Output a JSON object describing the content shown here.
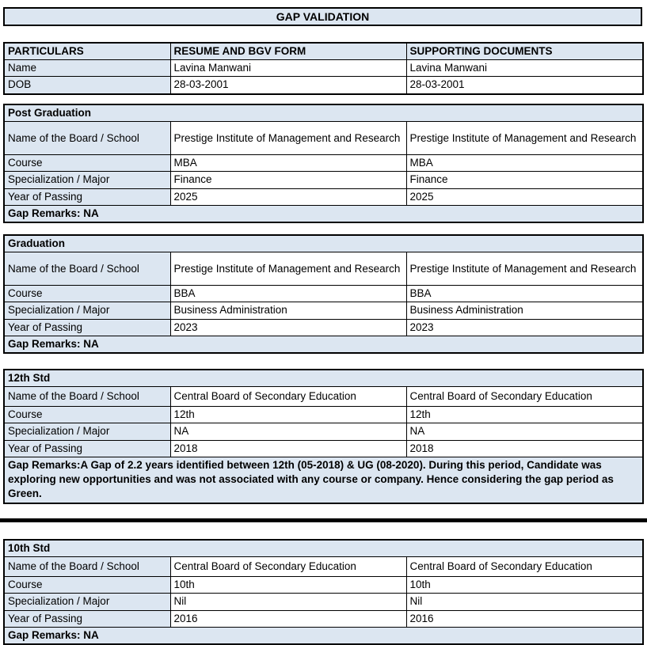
{
  "page": {
    "title": "GAP VALIDATION"
  },
  "colors": {
    "fill": "#dce6f1",
    "border": "#000000"
  },
  "particulars": {
    "headers": {
      "col1": "PARTICULARS",
      "col2": "RESUME AND BGV FORM",
      "col3": "SUPPORTING DOCUMENTS"
    },
    "rows": [
      {
        "label": "Name",
        "resume": "Lavina Manwani",
        "supporting": "Lavina Manwani"
      },
      {
        "label": "DOB",
        "resume": "28-03-2001",
        "supporting": "28-03-2001"
      }
    ]
  },
  "sections": [
    {
      "title": "Post Graduation",
      "rows": [
        {
          "label": "Name of the Board / School",
          "resume": "Prestige Institute of Management and Research",
          "supporting": "Prestige Institute of Management and Research"
        },
        {
          "label": "Course",
          "resume": "MBA",
          "supporting": "MBA"
        },
        {
          "label": "Specialization / Major",
          "resume": "Finance",
          "supporting": "Finance"
        },
        {
          "label": "Year of Passing",
          "resume": "2025",
          "supporting": "2025"
        }
      ],
      "gap_remarks": "Gap Remarks: NA"
    },
    {
      "title": "Graduation",
      "rows": [
        {
          "label": "Name of the Board / School",
          "resume": "Prestige Institute of Management and Research",
          "supporting": "Prestige Institute of Management and Research"
        },
        {
          "label": "Course",
          "resume": "BBA",
          "supporting": "BBA"
        },
        {
          "label": "Specialization / Major",
          "resume": "Business Administration",
          "supporting": "Business Administration"
        },
        {
          "label": "Year of Passing",
          "resume": "2023",
          "supporting": "2023"
        }
      ],
      "gap_remarks": "Gap Remarks: NA"
    },
    {
      "title": "12th Std",
      "rows": [
        {
          "label": "Name of the Board / School",
          "resume": "Central Board of Secondary Education",
          "supporting": "Central Board of Secondary Education"
        },
        {
          "label": "Course",
          "resume": "12th",
          "supporting": "12th"
        },
        {
          "label": "Specialization / Major",
          "resume": "NA",
          "supporting": "NA"
        },
        {
          "label": "Year of Passing",
          "resume": "2018",
          "supporting": "2018"
        }
      ],
      "gap_remarks": "Gap Remarks:A Gap of 2.2 years identified between 12th (05-2018) & UG (08-2020). During this period, Candidate was exploring new opportunities and was not associated with any course or company. Hence considering the gap period as Green."
    },
    {
      "title": "10th Std",
      "rows": [
        {
          "label": "Name of the Board / School",
          "resume": "Central Board of Secondary Education",
          "supporting": "Central Board of Secondary Education"
        },
        {
          "label": "Course",
          "resume": "10th",
          "supporting": "10th"
        },
        {
          "label": "Specialization / Major",
          "resume": "Nil",
          "supporting": "Nil"
        },
        {
          "label": "Year of Passing",
          "resume": "2016",
          "supporting": "2016"
        }
      ],
      "gap_remarks": "Gap Remarks: NA"
    }
  ]
}
